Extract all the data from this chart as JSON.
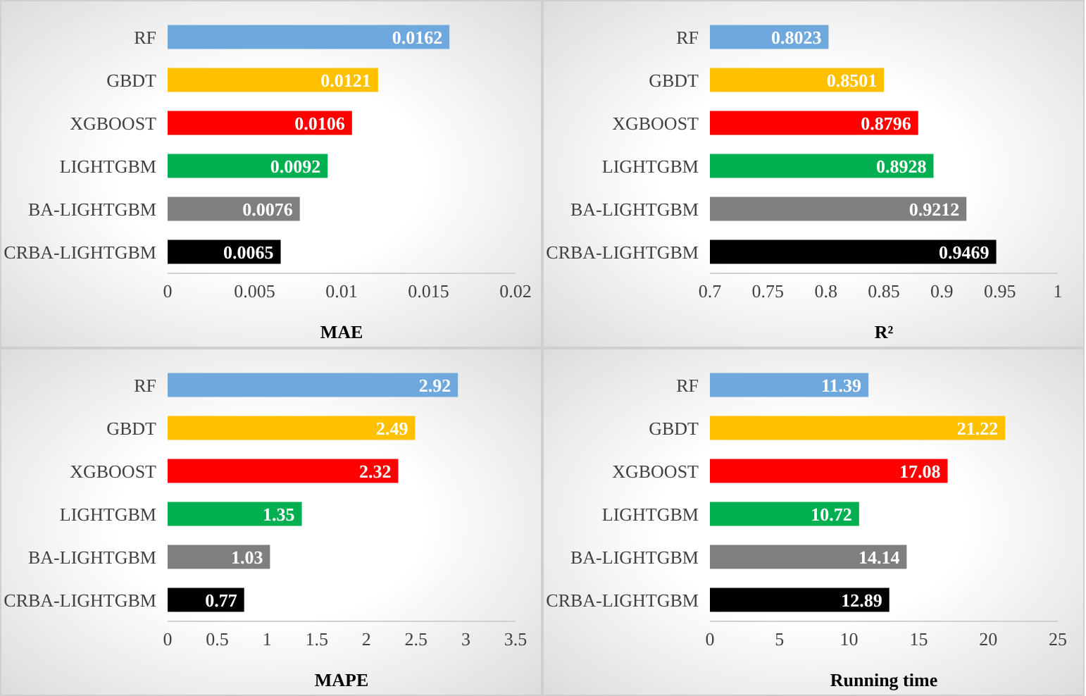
{
  "chart_data": [
    {
      "type": "bar",
      "orientation": "horizontal",
      "xlabel": "MAE",
      "categories": [
        "RF",
        "GBDT",
        "XGBOOST",
        "LIGHTGBM",
        "BA-LIGHTGBM",
        "CRBA-LIGHTGBM"
      ],
      "values": [
        0.0162,
        0.0121,
        0.0106,
        0.0092,
        0.0076,
        0.0065
      ],
      "colors": [
        "#6fa8dc",
        "#ffc000",
        "#ff0000",
        "#00b050",
        "#7f7f7f",
        "#000000"
      ],
      "xlim": [
        0,
        0.02
      ],
      "xticks": [
        0,
        0.005,
        0.01,
        0.015,
        0.02
      ],
      "data_labels": true
    },
    {
      "type": "bar",
      "orientation": "horizontal",
      "xlabel": "R²",
      "categories": [
        "RF",
        "GBDT",
        "XGBOOST",
        "LIGHTGBM",
        "BA-LIGHTGBM",
        "CRBA-LIGHTGBM"
      ],
      "values": [
        0.8023,
        0.8501,
        0.8796,
        0.8928,
        0.9212,
        0.9469
      ],
      "colors": [
        "#6fa8dc",
        "#ffc000",
        "#ff0000",
        "#00b050",
        "#7f7f7f",
        "#000000"
      ],
      "xlim": [
        0.7,
        1
      ],
      "xticks": [
        0.7,
        0.75,
        0.8,
        0.85,
        0.9,
        0.95,
        1
      ],
      "data_labels": true
    },
    {
      "type": "bar",
      "orientation": "horizontal",
      "xlabel": "MAPE",
      "categories": [
        "RF",
        "GBDT",
        "XGBOOST",
        "LIGHTGBM",
        "BA-LIGHTGBM",
        "CRBA-LIGHTGBM"
      ],
      "values": [
        2.92,
        2.49,
        2.32,
        1.35,
        1.03,
        0.77
      ],
      "colors": [
        "#6fa8dc",
        "#ffc000",
        "#ff0000",
        "#00b050",
        "#7f7f7f",
        "#000000"
      ],
      "xlim": [
        0,
        3.5
      ],
      "xticks": [
        0,
        0.5,
        1,
        1.5,
        2,
        2.5,
        3,
        3.5
      ],
      "data_labels": true
    },
    {
      "type": "bar",
      "orientation": "horizontal",
      "xlabel": "Running time",
      "categories": [
        "RF",
        "GBDT",
        "XGBOOST",
        "LIGHTGBM",
        "BA-LIGHTGBM",
        "CRBA-LIGHTGBM"
      ],
      "values": [
        11.39,
        21.22,
        17.08,
        10.72,
        14.14,
        12.89
      ],
      "colors": [
        "#6fa8dc",
        "#ffc000",
        "#ff0000",
        "#00b050",
        "#7f7f7f",
        "#000000"
      ],
      "xlim": [
        0,
        25
      ],
      "xticks": [
        0,
        5,
        10,
        15,
        20,
        25
      ],
      "data_labels": true
    }
  ]
}
